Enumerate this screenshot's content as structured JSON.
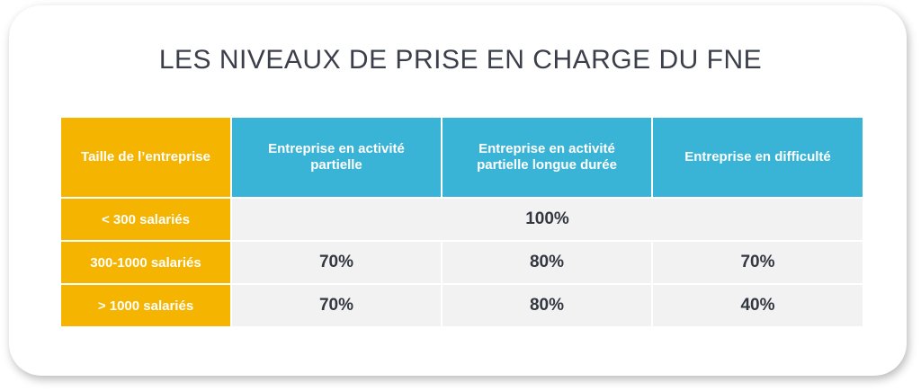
{
  "title": "LES NIVEAUX DE PRISE EN CHARGE DU FNE",
  "table": {
    "corner_header": "Taille de l’entreprise",
    "columns": [
      "Entreprise en activité partielle",
      "Entreprise en activité partielle longue durée",
      "Entreprise en difficulté"
    ],
    "rows": [
      {
        "label": "< 300 salariés",
        "merged_value": "100%"
      },
      {
        "label": "300-1000 salariés",
        "values": [
          "70%",
          "80%",
          "70%"
        ]
      },
      {
        "label": "> 1000 salariés",
        "values": [
          "70%",
          "80%",
          "40%"
        ]
      }
    ]
  },
  "colors": {
    "header_yellow": "#f5b400",
    "header_blue": "#3ab4d6",
    "cell_grey": "#f2f2f2",
    "text_dark": "#333840"
  }
}
